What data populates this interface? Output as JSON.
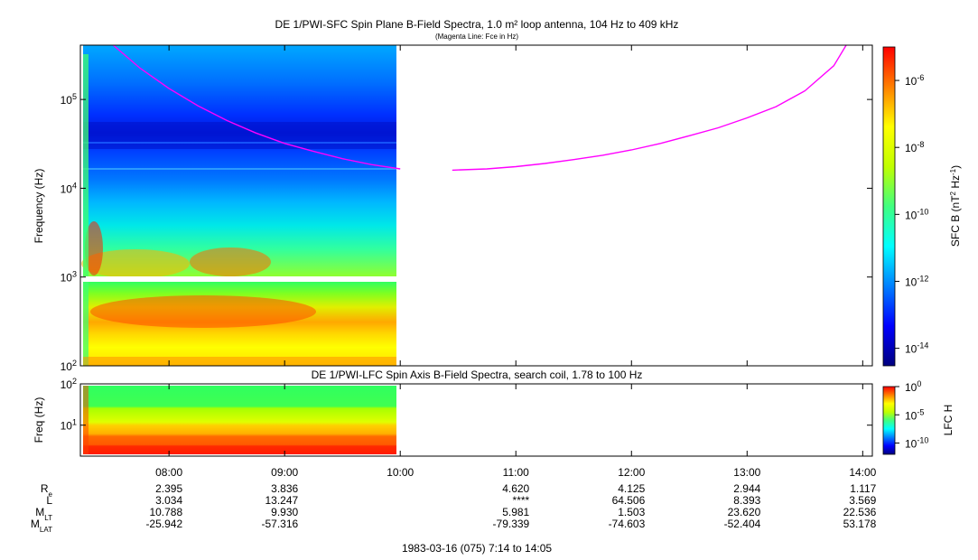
{
  "colors": {
    "fce_line": "#ff00ff",
    "colormap": [
      "#00007f",
      "#0000ff",
      "#0080ff",
      "#00ffff",
      "#40ff80",
      "#c0ff00",
      "#ffff00",
      "#ff8000",
      "#ff0000"
    ]
  },
  "chart_data": [
    {
      "type": "heatmap",
      "title": "DE 1/PWI-SFC  Spin Plane B-Field Spectra, 1.0 m² loop antenna, 104 Hz to 409 kHz",
      "subtitle": "(Magenta Line: Fce in Hz)",
      "xlabel": "",
      "ylabel": "Frequency (Hz)",
      "y_scale": "log",
      "xlim": [
        "07:14",
        "14:05"
      ],
      "ylim": [
        100,
        409000
      ],
      "y_ticks": [
        {
          "value": 100,
          "label": "10",
          "exp": "2"
        },
        {
          "value": 1000,
          "label": "10",
          "exp": "3"
        },
        {
          "value": 10000,
          "label": "10",
          "exp": "4"
        },
        {
          "value": 100000,
          "label": "10",
          "exp": "5"
        }
      ],
      "data_coverage": [
        "07:14",
        "10:00"
      ],
      "colorbar": {
        "label": "SFC B (nT",
        "label_sup1": "2",
        "label_mid": " Hz",
        "label_sup2": "-1",
        "label_end": ")",
        "scale": "log",
        "range": [
          3e-15,
          1e-05
        ],
        "ticks": [
          {
            "value": 1e-06,
            "label": "10",
            "exp": "-6"
          },
          {
            "value": 1e-08,
            "label": "10",
            "exp": "-8"
          },
          {
            "value": 1e-10,
            "label": "10",
            "exp": "-10"
          },
          {
            "value": 1e-12,
            "label": "10",
            "exp": "-12"
          },
          {
            "value": 1e-14,
            "label": "10",
            "exp": "-14"
          }
        ]
      },
      "series": [
        {
          "name": "Fce",
          "type": "line",
          "x": [
            "07:30",
            "07:45",
            "08:00",
            "08:15",
            "08:30",
            "08:45",
            "09:00",
            "09:15",
            "09:30",
            "09:45",
            "10:00"
          ],
          "y": [
            430000,
            225000,
            133000,
            85000,
            58000,
            42000,
            32000,
            26000,
            21500,
            18500,
            16500
          ]
        },
        {
          "name": "Fce",
          "type": "line",
          "x": [
            "10:27",
            "10:45",
            "11:00",
            "11:15",
            "11:30",
            "11:45",
            "12:00",
            "12:15",
            "12:30",
            "12:45",
            "13:00",
            "13:15",
            "13:30",
            "13:45",
            "13:52"
          ],
          "y": [
            16000,
            16500,
            17500,
            19000,
            21000,
            23500,
            27000,
            32000,
            39000,
            48000,
            62000,
            83000,
            125000,
            240000,
            430000
          ]
        }
      ]
    },
    {
      "type": "heatmap",
      "title": "DE 1/PWI-LFC  Spin Axis B-Field Spectra, search coil, 1.78 to 100 Hz",
      "ylabel": "Freq (Hz)",
      "y_scale": "log",
      "xlim": [
        "07:14",
        "14:05"
      ],
      "ylim": [
        1.78,
        100
      ],
      "y_ticks": [
        {
          "value": 10,
          "label": "10",
          "exp": "1"
        },
        {
          "value": 100,
          "label": "10",
          "exp": "2"
        }
      ],
      "data_coverage": [
        "07:14",
        "10:00"
      ],
      "colorbar": {
        "label": "LFC H",
        "scale": "log",
        "range": [
          1e-12,
          1
        ],
        "ticks": [
          {
            "value": 1,
            "label": "10",
            "exp": "0"
          },
          {
            "value": 1e-05,
            "label": "10",
            "exp": "-5"
          },
          {
            "value": 1e-10,
            "label": "10",
            "exp": "-10"
          }
        ]
      }
    }
  ],
  "x_axis": {
    "ticks": [
      "08:00",
      "09:00",
      "10:00",
      "11:00",
      "12:00",
      "13:00",
      "14:00"
    ],
    "rows": [
      {
        "label": "R",
        "sub": "e",
        "values": [
          "2.395",
          "3.836",
          "",
          "4.620",
          "4.125",
          "2.944",
          "1.117"
        ]
      },
      {
        "label": "L",
        "sub": "",
        "values": [
          "3.034",
          "13.247",
          "",
          "****",
          "64.506",
          "8.393",
          "3.569"
        ]
      },
      {
        "label": "M",
        "sub": "LT",
        "values": [
          "10.788",
          "9.930",
          "",
          "5.981",
          "1.503",
          "23.620",
          "22.536"
        ]
      },
      {
        "label": "M",
        "sub": "LAT",
        "values": [
          "-25.942",
          "-57.316",
          "",
          "-79.339",
          "-74.603",
          "-52.404",
          "53.178"
        ]
      }
    ],
    "footer": "1983-03-16 (075) 7:14 to 14:05"
  }
}
